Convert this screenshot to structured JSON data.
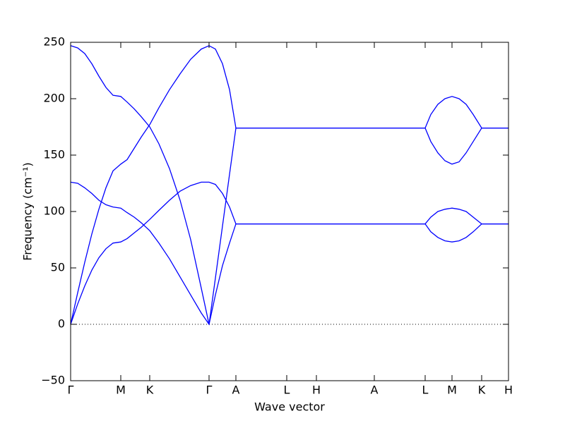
{
  "chart_data": {
    "type": "line",
    "xlabel": "Wave vector",
    "ylabel": "Frequency (cm⁻¹)",
    "x": [
      0,
      0.1,
      0.2,
      0.3,
      0.4,
      0.5,
      0.6,
      0.71,
      0.8,
      0.9,
      1.0,
      1.12,
      1.25,
      1.4,
      1.55,
      1.7,
      1.85,
      1.96,
      2.05,
      2.15,
      2.25,
      2.34,
      3.06,
      3.48,
      4.3,
      5.02,
      5.1,
      5.2,
      5.3,
      5.4,
      5.5,
      5.6,
      5.7,
      5.82,
      6.2
    ],
    "series": [
      {
        "color": "#0000ff",
        "values": [
          247,
          245,
          240,
          231,
          220,
          210,
          203,
          202,
          197,
          191,
          184,
          175,
          160,
          138,
          110,
          75,
          32,
          0,
          41,
          87,
          133,
          174,
          174,
          174,
          174,
          174,
          186,
          195,
          200,
          202,
          200,
          195,
          186,
          174,
          174
        ]
      },
      {
        "color": "#0000ff",
        "values": [
          0,
          28,
          55,
          80,
          102,
          121,
          136,
          142,
          146,
          156,
          166,
          177,
          192,
          208,
          222,
          235,
          244,
          247,
          244,
          231,
          208,
          174,
          174,
          174,
          174,
          174,
          162,
          152,
          145,
          142,
          144,
          152,
          162,
          174,
          174
        ]
      },
      {
        "color": "#0000ff",
        "values": [
          126,
          125,
          121,
          116,
          110,
          106,
          104,
          103,
          99,
          95,
          90,
          83,
          72,
          58,
          42,
          26,
          10,
          0,
          26,
          52,
          72,
          89,
          89,
          89,
          89,
          89,
          95,
          100,
          102,
          103,
          102,
          100,
          95,
          89,
          89
        ]
      },
      {
        "color": "#0000ff",
        "values": [
          0,
          18,
          34,
          48,
          59,
          67,
          72,
          73,
          76,
          81,
          86,
          93,
          101,
          110,
          118,
          123,
          126,
          126,
          124,
          116,
          104,
          89,
          89,
          89,
          89,
          89,
          82,
          77,
          74,
          73,
          74,
          77,
          82,
          89,
          89
        ]
      }
    ],
    "xlim": [
      0,
      6.2
    ],
    "xticks": [
      {
        "value": 0,
        "label": "Γ"
      },
      {
        "value": 0.71,
        "label": "M"
      },
      {
        "value": 1.12,
        "label": "K"
      },
      {
        "value": 1.96,
        "label": "Γ"
      },
      {
        "value": 2.34,
        "label": "A"
      },
      {
        "value": 3.06,
        "label": "L"
      },
      {
        "value": 3.48,
        "label": "H"
      },
      {
        "value": 4.3,
        "label": "A"
      },
      {
        "value": 5.02,
        "label": "L"
      },
      {
        "value": 5.4,
        "label": "M"
      },
      {
        "value": 5.82,
        "label": "K"
      },
      {
        "value": 6.2,
        "label": "H"
      }
    ],
    "ylim": [
      -50,
      250
    ],
    "yticks": [
      {
        "value": -50,
        "label": "−50"
      },
      0,
      50,
      100,
      150,
      200,
      250
    ],
    "hlines": [
      0
    ]
  }
}
